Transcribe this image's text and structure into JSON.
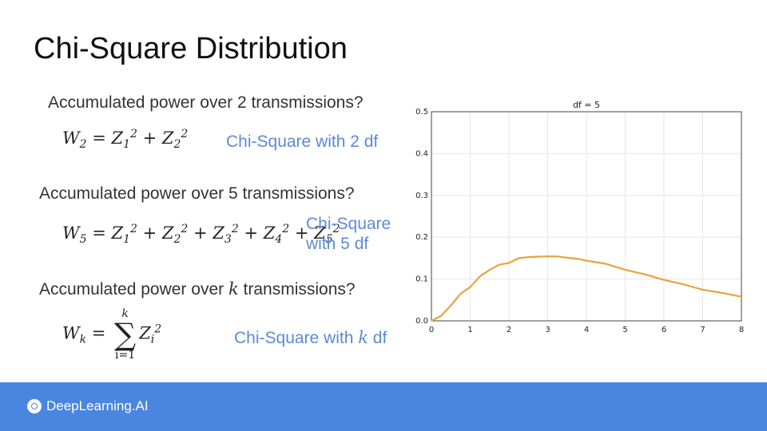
{
  "slide": {
    "title": "Chi-Square Distribution"
  },
  "sections": [
    {
      "question_prefix": "Accumulated power over ",
      "question_var": "2",
      "question_suffix": " transmissions?",
      "label": "Chi-Square with 2 df"
    },
    {
      "question_prefix": "Accumulated power over ",
      "question_var": "5",
      "question_suffix": " transmissions?",
      "label_line1": "Chi-Square",
      "label_line2": "with 5 df"
    },
    {
      "question_prefix": "Accumulated power over ",
      "question_var": "k",
      "question_suffix": " transmissions?",
      "label_prefix": "Chi-Square with ",
      "label_var": "k",
      "label_suffix": " df"
    }
  ],
  "formulas": {
    "w2": {
      "lhs": "W",
      "lhs_sub": "2",
      "terms": [
        "1",
        "2"
      ]
    },
    "w5": {
      "lhs": "W",
      "lhs_sub": "5",
      "terms": [
        "1",
        "2",
        "3",
        "4",
        "5"
      ]
    },
    "wk": {
      "lhs": "W",
      "lhs_sub": "k",
      "sum_upper": "k",
      "sum_lower": "i=1",
      "term_sub": "i"
    }
  },
  "chart_data": {
    "type": "line",
    "title": "df = 5",
    "xlabel": "",
    "ylabel": "",
    "xlim": [
      0,
      8
    ],
    "ylim": [
      0,
      0.5
    ],
    "xticks": [
      "0",
      "1",
      "2",
      "3",
      "4",
      "5",
      "6",
      "7",
      "8"
    ],
    "yticks": [
      "0.0",
      "0.1",
      "0.2",
      "0.3",
      "0.4",
      "0.5"
    ],
    "grid": true,
    "series": [
      {
        "color": "#e8a33d",
        "x": [
          0,
          0.25,
          0.5,
          0.75,
          1,
          1.25,
          1.5,
          1.75,
          2,
          2.25,
          2.5,
          2.75,
          3,
          3.25,
          3.5,
          3.75,
          4,
          4.5,
          5,
          5.5,
          6,
          6.5,
          7,
          7.5,
          8
        ],
        "y": [
          0,
          0.0123,
          0.0366,
          0.0646,
          0.0807,
          0.1063,
          0.122,
          0.1341,
          0.1383,
          0.1499,
          0.1524,
          0.1535,
          0.1542,
          0.154,
          0.151,
          0.1487,
          0.144,
          0.1365,
          0.122,
          0.1115,
          0.0979,
          0.0875,
          0.0744,
          0.067,
          0.0577
        ]
      }
    ]
  },
  "footer": {
    "brand": "DeepLearning.AI",
    "color": "#4a86e0"
  }
}
